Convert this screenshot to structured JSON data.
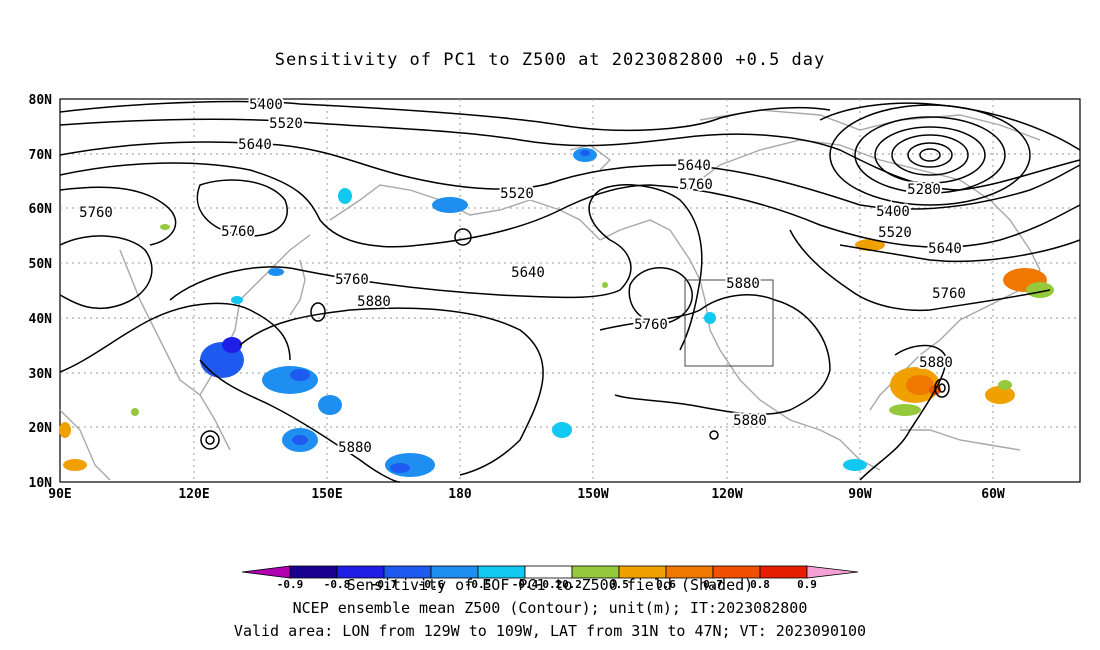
{
  "title": "Sensitivity of PC1 to Z500 at 2023082800 +0.5 day",
  "axes": {
    "lat_ticks": [
      "80N",
      "70N",
      "60N",
      "50N",
      "40N",
      "30N",
      "20N",
      "10N"
    ],
    "lon_ticks": [
      "90E",
      "120E",
      "150E",
      "180",
      "150W",
      "120W",
      "90W",
      "60W"
    ]
  },
  "contour_labels": [
    "5400",
    "5520",
    "5640",
    "5760",
    "5760",
    "5760",
    "5880",
    "5520",
    "5640",
    "5760",
    "5640",
    "5760",
    "5880",
    "5280",
    "5400",
    "5520",
    "5640",
    "5760",
    "5880",
    "5880",
    "5880"
  ],
  "colorbar": {
    "labels": [
      "-0.9",
      "-0.8",
      "-0.7",
      "-0.6",
      "-0.5",
      "-0.4",
      "-0.2",
      "0.2",
      "0.5",
      "0.6",
      "0.7",
      "0.8",
      "0.9"
    ],
    "colors": [
      "#b000b0",
      "#1a0090",
      "#1e1ee6",
      "#1e5af0",
      "#1e8ef0",
      "#10c8f0",
      "#ffffff",
      "#96c83c",
      "#f0a000",
      "#f07800",
      "#f05000",
      "#e61e00",
      "#f5a0d2"
    ]
  },
  "captions": {
    "line1": "Sensitivity of EOF PC1 to Z500 field (Shaded)",
    "line2": "NCEP ensemble mean Z500 (Contour); unit(m); IT:2023082800",
    "line3": "Valid area: LON from 129W to 109W, LAT from 31N to 47N; VT: 2023090100"
  },
  "valid_area_box": {
    "lon_min": -129,
    "lon_max": -109,
    "lat_min": 31,
    "lat_max": 47
  }
}
